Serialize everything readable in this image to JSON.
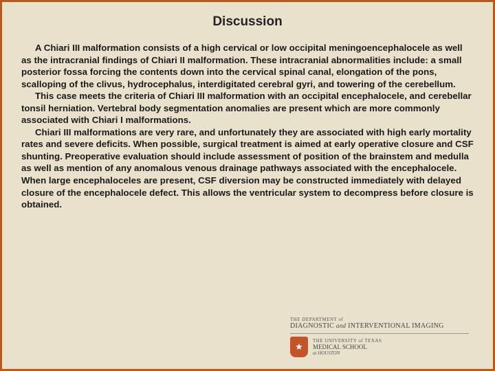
{
  "colors": {
    "background": "#e9e1cc",
    "border": "#b85a1e",
    "title": "#222222",
    "body": "#1a1a1a",
    "shield": "#c1542a"
  },
  "typography": {
    "title_fontsize": 19,
    "body_fontsize": 13.3,
    "font_family": "Arial, Helvetica, sans-serif"
  },
  "title": "Discussion",
  "paragraphs": [
    "A Chiari III malformation consists of a high cervical or low occipital meningoencephalocele as well as the intracranial findings of Chiari II malformation. These intracranial abnormalities include: a small posterior fossa forcing the contents down into the cervical spinal canal, elongation of the pons, scalloping of the clivus, hydrocephalus, interdigitated cerebral gyri, and towering of the cerebellum.",
    "This case meets the criteria of Chiari III malformation with an occipital encephalocele, and cerebellar tonsil herniation.  Vertebral body segmentation anomalies are present which are more commonly associated with Chiari I malformations.",
    "Chiari III malformations are very rare, and unfortunately they are associated with high early mortality rates and severe deficits.  When possible, surgical treatment is aimed at early operative closure and CSF shunting.  Preoperative evaluation should include assessment of position of the brainstem and medulla as well as mention of any anomalous venous drainage pathways associated with the encephalocele. When large encephaloceles are present, CSF diversion may be constructed immediately with delayed closure of the encephalocele defect.  This allows the ventricular system to decompress before closure is obtained."
  ],
  "logo": {
    "dept_prefix": "THE DEPARTMENT of",
    "dept_name_1": "DIAGNOSTIC",
    "dept_and": "and",
    "dept_name_2": "INTERVENTIONAL IMAGING",
    "univ_prefix": "THE UNIVERSITY of TEXAS",
    "univ_name": "MEDICAL SCHOOL",
    "univ_loc": "at HOUSTON"
  }
}
